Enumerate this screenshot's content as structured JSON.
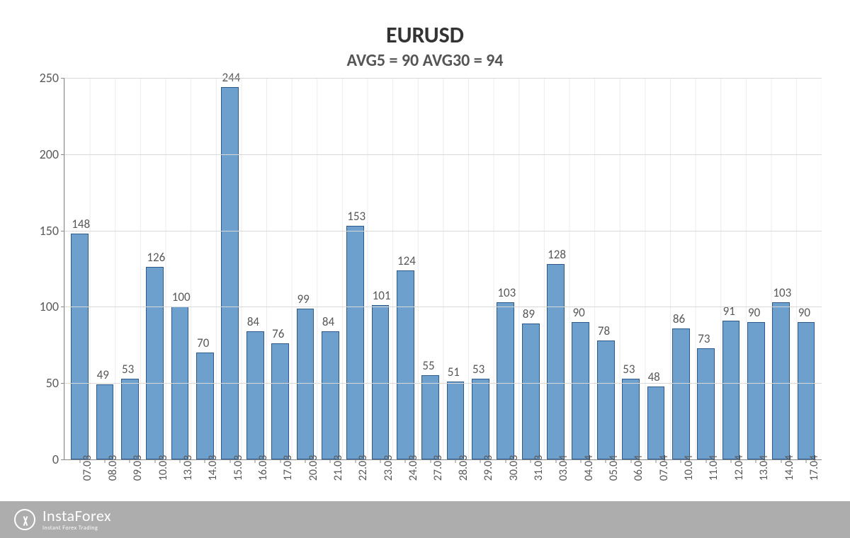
{
  "chart": {
    "type": "bar",
    "title": "EURUSD",
    "title_fontsize": 32,
    "subtitle": "AVG5 = 90 AVG30 = 94",
    "subtitle_fontsize": 24,
    "bar_fill": "#6da0cd",
    "bar_border": "#2d5a8a",
    "bar_width": 0.7,
    "background_color": "#ffffff",
    "grid_color": "#d9d9d9",
    "axis_color": "#888888",
    "label_color": "#595959",
    "label_fontsize": 17,
    "ytick_fontsize": 18,
    "xtick_fontsize": 16,
    "ylim": [
      0,
      250
    ],
    "ytick_step": 50,
    "yticks": [
      0,
      50,
      100,
      150,
      200,
      250
    ],
    "categories": [
      "07.03",
      "08.03",
      "09.03",
      "10.03",
      "13.03",
      "14.03",
      "15.03",
      "16.03",
      "17.03",
      "20.03",
      "21.03",
      "22.03",
      "23.03",
      "24.03",
      "27.03",
      "28.03",
      "29.03",
      "30.03",
      "31.03",
      "03.04",
      "04.04",
      "05.04",
      "06.04",
      "07.04",
      "10.04",
      "11.04",
      "12.04",
      "13.04",
      "14.04",
      "17.04"
    ],
    "values": [
      148,
      49,
      53,
      126,
      100,
      70,
      244,
      84,
      76,
      99,
      84,
      153,
      101,
      124,
      55,
      51,
      53,
      103,
      89,
      128,
      90,
      78,
      53,
      48,
      86,
      73,
      91,
      90,
      103,
      90
    ]
  },
  "watermark": {
    "brand": "InstaForex",
    "tagline": "Instant Forex Trading"
  }
}
